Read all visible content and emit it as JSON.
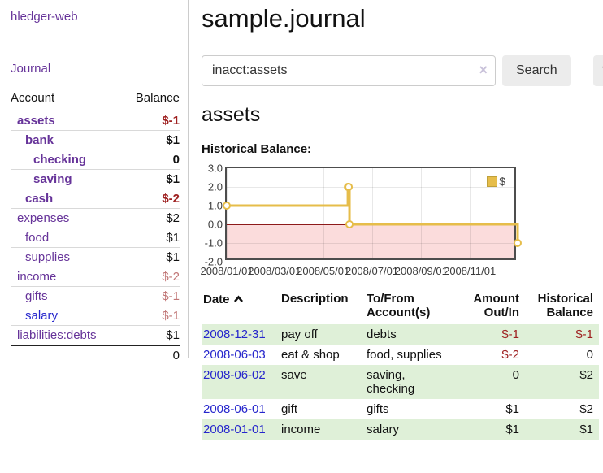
{
  "app": {
    "title": "hledger-web",
    "nav": {
      "journal": "Journal"
    }
  },
  "sidebar": {
    "headers": {
      "account": "Account",
      "balance": "Balance"
    },
    "accounts": [
      {
        "name": "assets",
        "level": 1,
        "balance": "$-1",
        "bold": true,
        "negative": "strong",
        "link": "purple"
      },
      {
        "name": "bank",
        "level": 2,
        "balance": "$1",
        "bold": true,
        "negative": "none",
        "link": "purple"
      },
      {
        "name": "checking",
        "level": 3,
        "balance": "0",
        "bold": true,
        "negative": "none",
        "link": "purple"
      },
      {
        "name": "saving",
        "level": 3,
        "balance": "$1",
        "bold": true,
        "negative": "none",
        "link": "purple"
      },
      {
        "name": "cash",
        "level": 2,
        "balance": "$-2",
        "bold": true,
        "negative": "strong",
        "link": "purple"
      },
      {
        "name": "expenses",
        "level": 1,
        "balance": "$2",
        "bold": false,
        "negative": "none",
        "link": "purple"
      },
      {
        "name": "food",
        "level": 2,
        "balance": "$1",
        "bold": false,
        "negative": "none",
        "link": "purple"
      },
      {
        "name": "supplies",
        "level": 2,
        "balance": "$1",
        "bold": false,
        "negative": "none",
        "link": "purple"
      },
      {
        "name": "income",
        "level": 1,
        "balance": "$-2",
        "bold": false,
        "negative": "soft",
        "link": "purple"
      },
      {
        "name": "gifts",
        "level": 2,
        "balance": "$-1",
        "bold": false,
        "negative": "soft",
        "link": "purple"
      },
      {
        "name": "salary",
        "level": 2,
        "balance": "$-1",
        "bold": false,
        "negative": "soft",
        "link": "blue"
      },
      {
        "name": "liabilities:debts",
        "level": 1,
        "balance": "$1",
        "bold": false,
        "negative": "none",
        "link": "purple"
      }
    ],
    "total": "0"
  },
  "main": {
    "title": "sample.journal"
  },
  "search": {
    "value": "inacct:assets",
    "clear_icon": "×",
    "search_button": "Search",
    "help_button": "?"
  },
  "account_page": {
    "heading": "assets",
    "chart_title": "Historical Balance:"
  },
  "chart_data": {
    "type": "line",
    "style": "step-with-markers",
    "title": "Historical Balance",
    "x_start": "2008-01-01",
    "x_end": "2008-12-31",
    "points": [
      [
        "2008-01-01",
        1
      ],
      [
        "2008-06-01",
        2
      ],
      [
        "2008-06-02",
        2
      ],
      [
        "2008-06-03",
        0
      ],
      [
        "2008-12-31",
        -1
      ]
    ],
    "x_ticks": [
      "2008/01/01",
      "2008/03/01",
      "2008/05/01",
      "2008/07/01",
      "2008/09/01",
      "2008/11/01"
    ],
    "y_ticks": [
      "3.0",
      "2.0",
      "1.0",
      "0.0",
      "-1.0",
      "-2.0"
    ],
    "ylim": [
      -2,
      3
    ],
    "legend": [
      {
        "label": "$",
        "color": "#e6bd4a"
      }
    ],
    "grid": true,
    "colors": {
      "line": "#e6bd4a",
      "marker_fill": "#ffffff",
      "negative_zone": "#fbdcdc",
      "zero_line": "#8d1a1a",
      "border": "#4d4d4d"
    }
  },
  "register": {
    "headers": {
      "date": "Date",
      "description": "Description",
      "accounts": "To/From Account(s)",
      "amount": "Amount Out/In",
      "balance": "Historical Balance"
    },
    "sort": {
      "column": "date",
      "direction": "asc"
    },
    "rows": [
      {
        "date": "2008-12-31",
        "description": "pay off",
        "accounts": "debts",
        "amount": "$-1",
        "balance": "$-1",
        "amount_negative": true,
        "balance_negative": true
      },
      {
        "date": "2008-06-03",
        "description": "eat & shop",
        "accounts": "food, supplies",
        "amount": "$-2",
        "balance": "0",
        "amount_negative": true,
        "balance_negative": false
      },
      {
        "date": "2008-06-02",
        "description": "save",
        "accounts": "saving, checking",
        "amount": "0",
        "balance": "$2",
        "amount_negative": false,
        "balance_negative": false
      },
      {
        "date": "2008-06-01",
        "description": "gift",
        "accounts": "gifts",
        "amount": "$1",
        "balance": "$2",
        "amount_negative": false,
        "balance_negative": false
      },
      {
        "date": "2008-01-01",
        "description": "income",
        "accounts": "salary",
        "amount": "$1",
        "balance": "$1",
        "amount_negative": false,
        "balance_negative": false
      }
    ]
  }
}
